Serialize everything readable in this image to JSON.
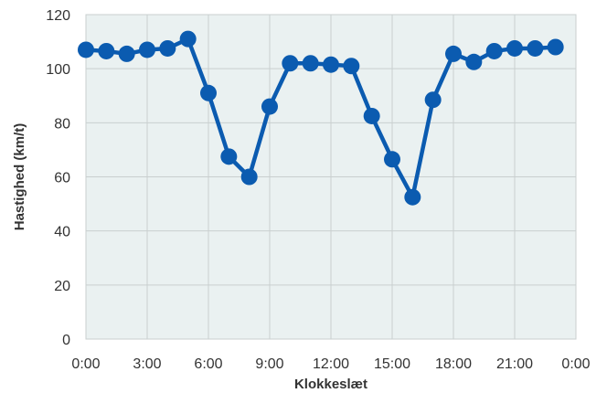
{
  "chart_data": {
    "type": "line",
    "title": "",
    "xlabel": "Klokkeslæt",
    "ylabel": "Hastighed (km/t)",
    "x_unit": "hours",
    "x_tick_labels": [
      "0:00",
      "3:00",
      "6:00",
      "9:00",
      "12:00",
      "15:00",
      "18:00",
      "21:00",
      "0:00"
    ],
    "xlim": [
      0,
      24
    ],
    "ylim": [
      0,
      120
    ],
    "y_ticks": [
      0,
      20,
      40,
      60,
      80,
      100,
      120
    ],
    "grid": true,
    "legend": "none",
    "colors": {
      "line": "#0b5bb0",
      "plot_background": "#eaf1f1",
      "grid": "#c9cfcf"
    },
    "series": [
      {
        "x": [
          0,
          1,
          2,
          3,
          4,
          5,
          6,
          7,
          8,
          9,
          10,
          11,
          12,
          13,
          14,
          15,
          16,
          17,
          18,
          19,
          20,
          21,
          22,
          23
        ],
        "values": [
          107,
          106.5,
          105.5,
          107,
          107.5,
          111,
          91,
          67.5,
          60,
          86,
          102,
          102,
          101.5,
          101,
          82.5,
          66.5,
          52.5,
          88.5,
          105.5,
          102.5,
          106.5,
          107.5,
          107.5,
          108
        ]
      }
    ]
  }
}
